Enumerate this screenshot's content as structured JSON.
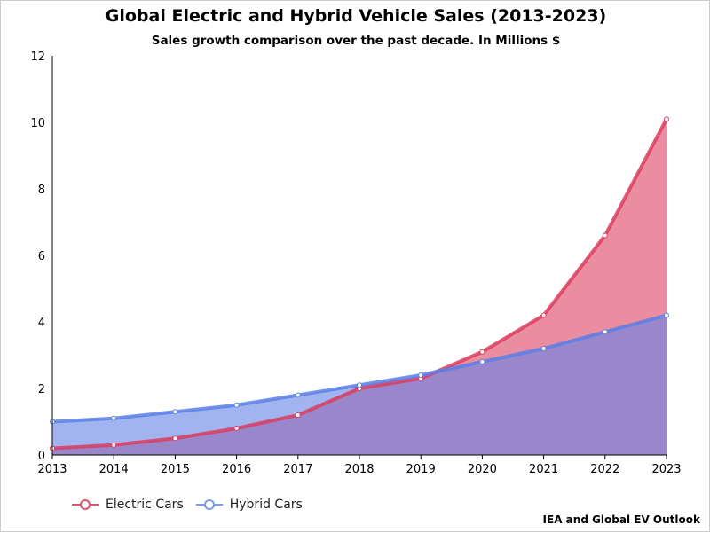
{
  "chart_data": {
    "type": "area",
    "title": "Global Electric and Hybrid Vehicle Sales (2013-2023)",
    "subtitle": "Sales growth comparison over the past decade. In Millions $",
    "source": "IEA and Global EV Outlook",
    "categories": [
      "2013",
      "2014",
      "2015",
      "2016",
      "2017",
      "2018",
      "2019",
      "2020",
      "2021",
      "2022",
      "2023"
    ],
    "series": [
      {
        "name": "Electric Cars",
        "color": "#dc3c5e",
        "values": [
          0.2,
          0.3,
          0.5,
          0.8,
          1.2,
          2.0,
          2.3,
          3.1,
          4.2,
          6.6,
          10.1
        ]
      },
      {
        "name": "Hybrid Cars",
        "color": "#5b7fe6",
        "values": [
          1.0,
          1.1,
          1.3,
          1.5,
          1.8,
          2.1,
          2.4,
          2.8,
          3.2,
          3.7,
          4.2
        ]
      }
    ],
    "ylim": [
      0,
      12
    ],
    "yticks": [
      "0",
      "2",
      "4",
      "6",
      "8",
      "10",
      "12"
    ],
    "grid": false,
    "legend": "bottom-left"
  }
}
